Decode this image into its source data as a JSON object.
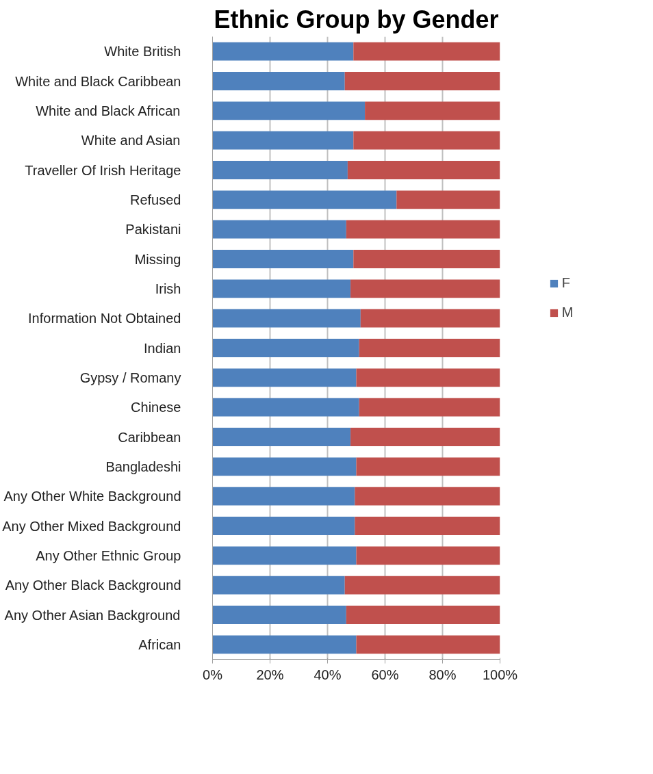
{
  "chart_data": {
    "type": "bar",
    "title": "Ethnic Group by Gender",
    "orientation": "horizontal",
    "stacked": true,
    "categories": [
      "White British",
      "White and Black Caribbean",
      "White and Black African",
      "White and Asian",
      "Traveller Of Irish Heritage",
      "Refused",
      "Pakistani",
      "Missing",
      "Irish",
      "Information Not Obtained",
      "Indian",
      "Gypsy / Romany",
      "Chinese",
      "Caribbean",
      "Bangladeshi",
      "Any Other White Background",
      "Any Other Mixed Background",
      "Any Other Ethnic Group",
      "Any Other Black Background",
      "Any Other Asian Background",
      "African"
    ],
    "series": [
      {
        "name": "F",
        "color": "#4f81bd",
        "values": [
          49,
          46,
          53,
          49,
          47,
          64,
          46.5,
          49,
          48,
          51.5,
          51,
          50,
          51,
          48,
          50,
          49.5,
          49.5,
          50,
          46,
          46.5,
          50
        ]
      },
      {
        "name": "M",
        "color": "#c0504d",
        "values": [
          51,
          54,
          47,
          51,
          53,
          36,
          53.5,
          51,
          52,
          48.5,
          49,
          50,
          49,
          52,
          50,
          50.5,
          50.5,
          50,
          54,
          53.5,
          50
        ]
      }
    ],
    "xlim": [
      0,
      100
    ],
    "xticks": [
      {
        "value": 0,
        "label": "0%"
      },
      {
        "value": 20,
        "label": "20%"
      },
      {
        "value": 40,
        "label": "40%"
      },
      {
        "value": 60,
        "label": "60%"
      },
      {
        "value": 80,
        "label": "80%"
      },
      {
        "value": 100,
        "label": "100%"
      }
    ],
    "grid": "x",
    "legend": "right"
  }
}
